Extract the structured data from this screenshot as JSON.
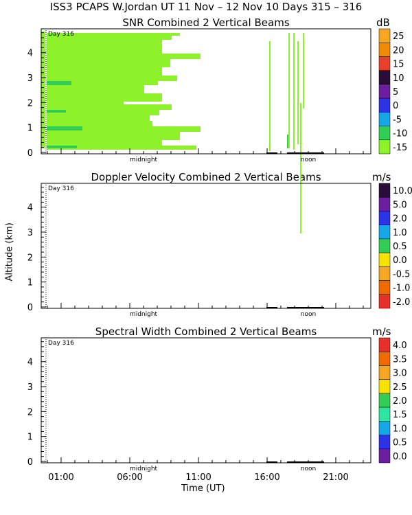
{
  "title": "ISS3 PCAPS W.Jordan UT  11 Nov – 12 Nov 10 Days 315 – 316",
  "ylabel": "Altitude (km)",
  "xlabel": "Time (UT)",
  "x_ticklabels": [
    "01:00",
    "06:00",
    "11:00",
    "16:00",
    "21:00"
  ],
  "day_label": "Day 316",
  "midnight_label": "midnight",
  "noon_label": "noon",
  "chart_data": [
    {
      "type": "heatmap",
      "title": "SNR Combined 2 Vertical Beams",
      "units": "dB",
      "ylim": [
        0,
        4.9
      ],
      "y_ticks": [
        0,
        1,
        2,
        3,
        4
      ],
      "colorbar": [
        {
          "label": "25",
          "color": "#f5a623"
        },
        {
          "label": "20",
          "color": "#f08a00"
        },
        {
          "label": "15",
          "color": "#e8402a"
        },
        {
          "label": "10",
          "color": "#2a0e3a"
        },
        {
          "label": "5",
          "color": "#6a1fa0"
        },
        {
          "label": "0",
          "color": "#2c34e6"
        },
        {
          "label": "-5",
          "color": "#16a8e6"
        },
        {
          "label": "-10",
          "color": "#33cc55"
        },
        {
          "label": "-15",
          "color": "#8df22a"
        }
      ],
      "dominant_value_db": -15,
      "echo_bands_km": [
        [
          0.15,
          0.25
        ],
        [
          0.8,
          1.2
        ],
        [
          1.4,
          1.9
        ],
        [
          2.2,
          2.4
        ],
        [
          2.6,
          3.3
        ],
        [
          3.6,
          3.9
        ],
        [
          4.3,
          4.6
        ]
      ]
    },
    {
      "type": "heatmap",
      "title": "Doppler Velocity Combined 2 Vertical Beams",
      "units": "m/s",
      "ylim": [
        0,
        4.9
      ],
      "y_ticks": [
        0,
        1,
        2,
        3,
        4
      ],
      "colorbar": [
        {
          "label": "10.0",
          "color": "#2a0e3a"
        },
        {
          "label": "5.0",
          "color": "#6a1fa0"
        },
        {
          "label": "2.0",
          "color": "#2c34e6"
        },
        {
          "label": "1.0",
          "color": "#16a8e6"
        },
        {
          "label": "0.5",
          "color": "#33cc55"
        },
        {
          "label": "0.0",
          "color": "#f5e200"
        },
        {
          "label": "-0.5",
          "color": "#f5a623"
        },
        {
          "label": "-1.0",
          "color": "#f06a00"
        },
        {
          "label": "-2.0",
          "color": "#e8302a"
        }
      ]
    },
    {
      "type": "heatmap",
      "title": "Spectral Width Combined 2 Vertical Beams",
      "units": "m/s",
      "ylim": [
        0,
        4.9
      ],
      "y_ticks": [
        0,
        1,
        2,
        3,
        4
      ],
      "colorbar": [
        {
          "label": "4.0",
          "color": "#e8302a"
        },
        {
          "label": "3.5",
          "color": "#f06a00"
        },
        {
          "label": "3.0",
          "color": "#f5a623"
        },
        {
          "label": "2.5",
          "color": "#f5e200"
        },
        {
          "label": "2.0",
          "color": "#33cc55"
        },
        {
          "label": "1.5",
          "color": "#2ee6a0"
        },
        {
          "label": "1.0",
          "color": "#16a8e6"
        },
        {
          "label": "0.5",
          "color": "#2c34e6"
        },
        {
          "label": "0.0",
          "color": "#6a1fa0"
        }
      ]
    }
  ]
}
